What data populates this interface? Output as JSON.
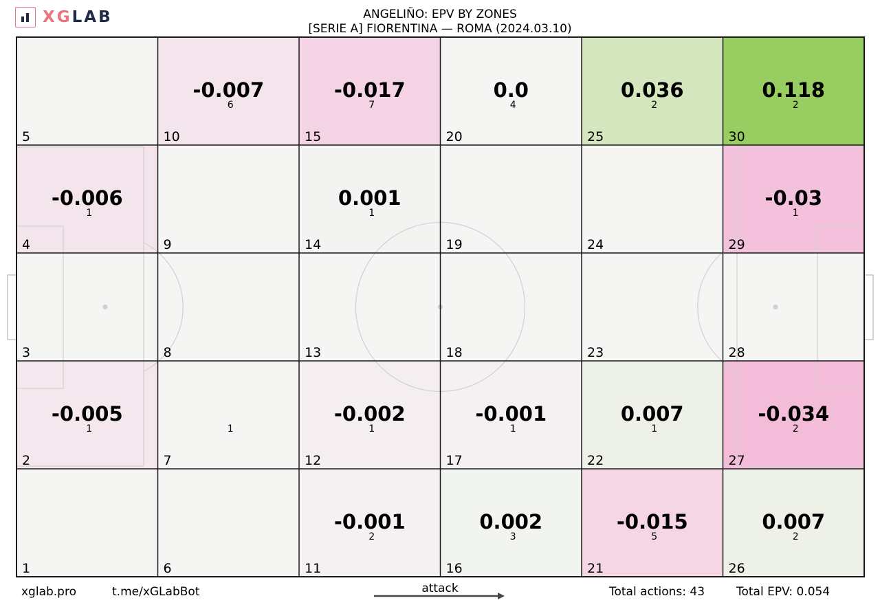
{
  "header": {
    "brand_xg": "XG",
    "brand_lab": "LAB",
    "title_line1": "ANGELIÑO: EPV BY ZONES",
    "title_line2": "[SERIE A] FIORENTINA —  ROMA (2024.03.10)"
  },
  "colors": {
    "zero": "#f5f5f4",
    "positive_max": "#98cd61",
    "negative_max": "#f3bcd9",
    "grid": "#1a1a1a",
    "pitch_markings": "#d0d0d0"
  },
  "chart_data": {
    "type": "heatmap",
    "grid": {
      "columns": 6,
      "rows": 5
    },
    "zones": [
      {
        "zone": 1,
        "epv": null,
        "actions": null
      },
      {
        "zone": 2,
        "epv": "-0.005",
        "actions": 1
      },
      {
        "zone": 3,
        "epv": null,
        "actions": null
      },
      {
        "zone": 4,
        "epv": "-0.006",
        "actions": 1
      },
      {
        "zone": 5,
        "epv": null,
        "actions": null
      },
      {
        "zone": 6,
        "epv": null,
        "actions": null
      },
      {
        "zone": 7,
        "epv": null,
        "actions": 1
      },
      {
        "zone": 8,
        "epv": null,
        "actions": null
      },
      {
        "zone": 9,
        "epv": null,
        "actions": null
      },
      {
        "zone": 10,
        "epv": "-0.007",
        "actions": 6
      },
      {
        "zone": 11,
        "epv": "-0.001",
        "actions": 2
      },
      {
        "zone": 12,
        "epv": "-0.002",
        "actions": 1
      },
      {
        "zone": 13,
        "epv": null,
        "actions": null
      },
      {
        "zone": 14,
        "epv": "0.001",
        "actions": 1
      },
      {
        "zone": 15,
        "epv": "-0.017",
        "actions": 7
      },
      {
        "zone": 16,
        "epv": "0.002",
        "actions": 3
      },
      {
        "zone": 17,
        "epv": "-0.001",
        "actions": 1
      },
      {
        "zone": 18,
        "epv": null,
        "actions": null
      },
      {
        "zone": 19,
        "epv": null,
        "actions": null
      },
      {
        "zone": 20,
        "epv": "0.0",
        "actions": 4
      },
      {
        "zone": 21,
        "epv": "-0.015",
        "actions": 5
      },
      {
        "zone": 22,
        "epv": "0.007",
        "actions": 1
      },
      {
        "zone": 23,
        "epv": null,
        "actions": null
      },
      {
        "zone": 24,
        "epv": null,
        "actions": null
      },
      {
        "zone": 25,
        "epv": "0.036",
        "actions": 2
      },
      {
        "zone": 26,
        "epv": "0.007",
        "actions": 2
      },
      {
        "zone": 27,
        "epv": "-0.034",
        "actions": 2
      },
      {
        "zone": 28,
        "epv": null,
        "actions": null
      },
      {
        "zone": 29,
        "epv": "-0.03",
        "actions": 1
      },
      {
        "zone": 30,
        "epv": "0.118",
        "actions": 2
      }
    ]
  },
  "footer": {
    "site": "xglab.pro",
    "bot": "t.me/xGLabBot",
    "attack_label": "attack",
    "total_actions": "Total actions: 43",
    "total_epv": "Total EPV: 0.054"
  }
}
